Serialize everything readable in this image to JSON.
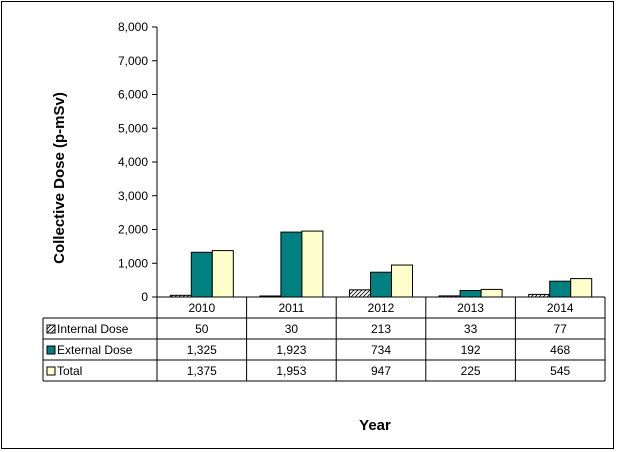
{
  "chart_data": {
    "type": "bar",
    "title": "",
    "xlabel": "Year",
    "ylabel": "Collective Dose (p-mSv)",
    "ylim": [
      0,
      8000
    ],
    "yticks": [
      0,
      1000,
      2000,
      3000,
      4000,
      5000,
      6000,
      7000,
      8000
    ],
    "ytick_labels": [
      "0",
      "1,000",
      "2,000",
      "3,000",
      "4,000",
      "5,000",
      "6,000",
      "7,000",
      "8,000"
    ],
    "categories": [
      "2010",
      "2011",
      "2012",
      "2013",
      "2014"
    ],
    "series": [
      {
        "name": "Internal Dose",
        "values": [
          50,
          30,
          213,
          33,
          77
        ],
        "labels": [
          "50",
          "30",
          "213",
          "33",
          "77"
        ],
        "fill": "#ffffff",
        "pattern": "diagonal-hatch"
      },
      {
        "name": "External Dose",
        "values": [
          1325,
          1923,
          734,
          192,
          468
        ],
        "labels": [
          "1,325",
          "1,923",
          "734",
          "192",
          "468"
        ],
        "fill": "#008080"
      },
      {
        "name": "Total",
        "values": [
          1375,
          1953,
          947,
          225,
          545
        ],
        "labels": [
          "1,375",
          "1,953",
          "947",
          "225",
          "545"
        ],
        "fill": "#ffffcc"
      }
    ],
    "grid": false,
    "legend": "data-table",
    "data_table": true
  }
}
